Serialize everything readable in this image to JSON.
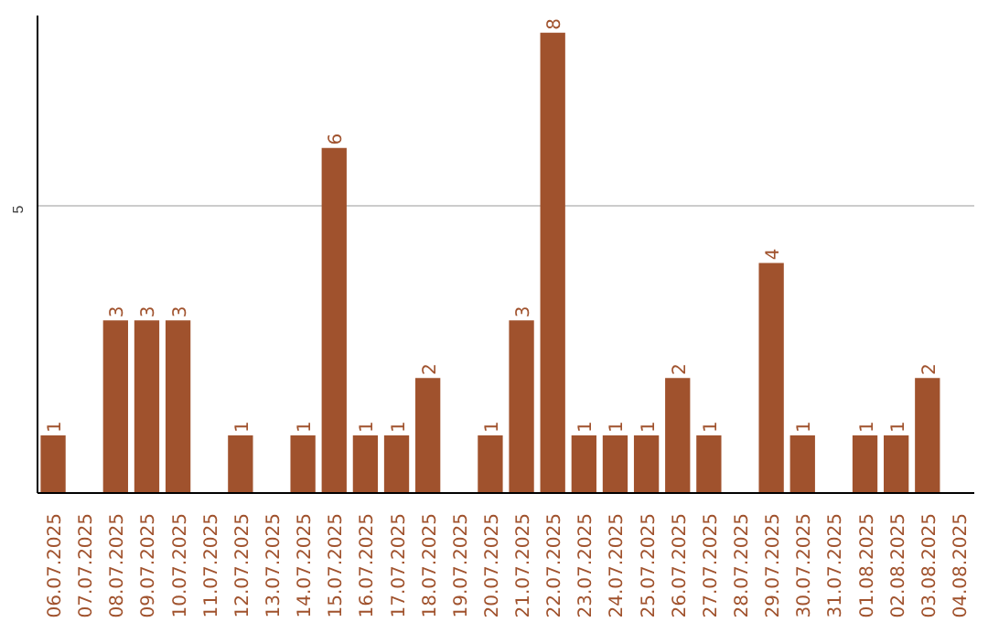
{
  "chart_data": {
    "type": "bar",
    "categories": [
      "06.07.2025",
      "07.07.2025",
      "08.07.2025",
      "09.07.2025",
      "10.07.2025",
      "11.07.2025",
      "12.07.2025",
      "13.07.2025",
      "14.07.2025",
      "15.07.2025",
      "16.07.2025",
      "17.07.2025",
      "18.07.2025",
      "19.07.2025",
      "20.07.2025",
      "21.07.2025",
      "22.07.2025",
      "23.07.2025",
      "24.07.2025",
      "25.07.2025",
      "26.07.2025",
      "27.07.2025",
      "28.07.2025",
      "29.07.2025",
      "30.07.2025",
      "31.07.2025",
      "01.08.2025",
      "02.08.2025",
      "03.08.2025",
      "04.08.2025"
    ],
    "values": [
      1,
      null,
      3,
      3,
      3,
      null,
      1,
      null,
      1,
      6,
      1,
      1,
      2,
      null,
      1,
      3,
      8,
      1,
      1,
      1,
      2,
      1,
      null,
      4,
      1,
      null,
      1,
      1,
      2,
      null
    ],
    "color": "#a0522d",
    "ylim": [
      0,
      8.3
    ],
    "yticks": [
      5
    ],
    "grid": "y",
    "data_labels": true
  }
}
